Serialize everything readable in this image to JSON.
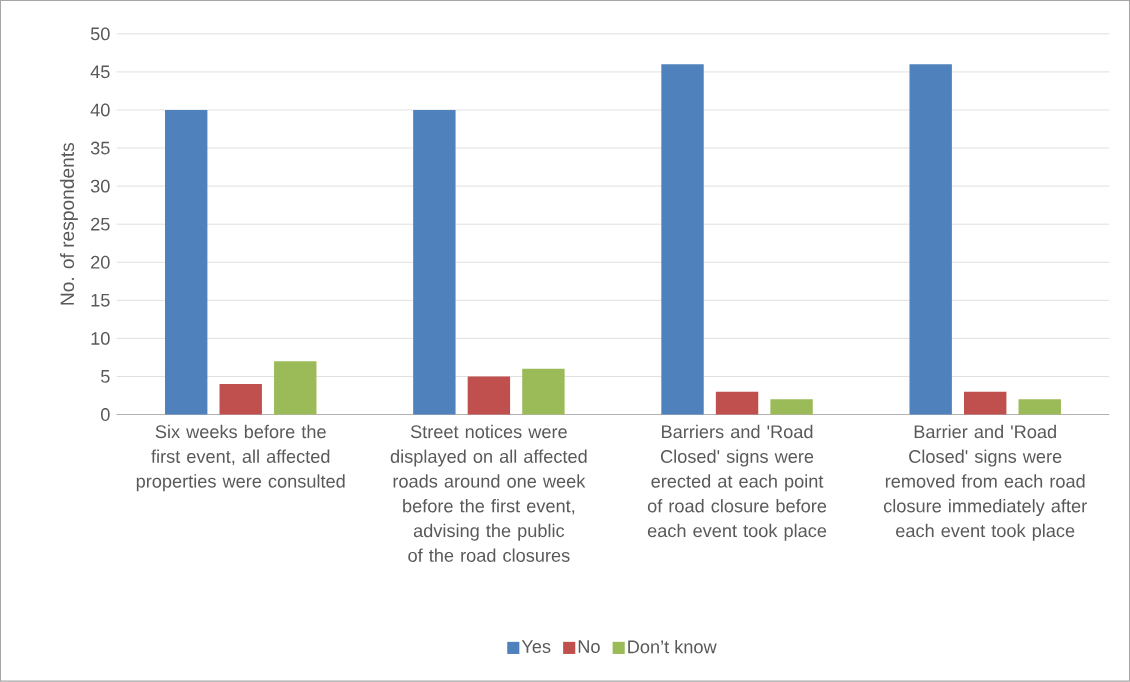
{
  "chart_data": {
    "type": "bar",
    "ylabel": "No. of respondents",
    "categories": [
      "Six weeks before the first event, all affected properties were consulted",
      "Street notices were displayed on all affected roads around one week before the first event, advising the public of the road closures",
      "Barriers and 'Road Closed' signs were erected at each point of road closure before each event took place",
      "Barrier and 'Road Closed' signs were removed from each road closure immediately after each event took place"
    ],
    "series": [
      {
        "name": "Yes",
        "color": "#4f81bd",
        "values": [
          40,
          40,
          46,
          46
        ]
      },
      {
        "name": "No",
        "color": "#c0504d",
        "values": [
          4,
          5,
          3,
          3
        ]
      },
      {
        "name": "Don’t know",
        "color": "#9bbb59",
        "values": [
          7,
          6,
          2,
          2
        ]
      }
    ],
    "ylim": [
      0,
      50
    ],
    "yticks": [
      0,
      5,
      10,
      15,
      20,
      25,
      30,
      35,
      40,
      45,
      50
    ],
    "grid": "y",
    "legend": "bottom"
  }
}
